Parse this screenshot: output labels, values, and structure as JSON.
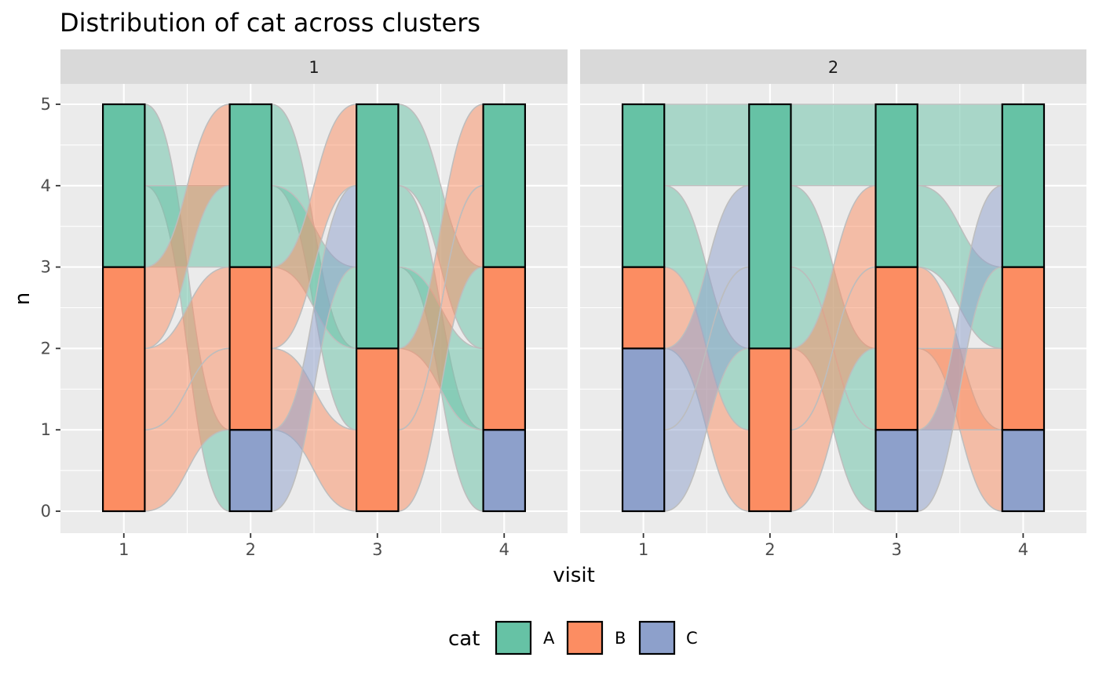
{
  "chart_data": {
    "type": "alluvial",
    "title": "Distribution of cat across clusters",
    "xlabel": "visit",
    "ylabel": "n",
    "ylim": [
      0,
      5
    ],
    "y_ticks": [
      0,
      1,
      2,
      3,
      4,
      5
    ],
    "x_ticks": [
      1,
      2,
      3,
      4
    ],
    "grid": true,
    "legend": {
      "title": "cat",
      "position": "bottom",
      "items": [
        {
          "name": "A",
          "color": "#66c2a5"
        },
        {
          "name": "B",
          "color": "#fc8d62"
        },
        {
          "name": "C",
          "color": "#8da0cb"
        }
      ]
    },
    "stack_order": [
      "C",
      "B",
      "A"
    ],
    "facets": [
      {
        "label": "1",
        "strata": [
          {
            "visit": 1,
            "counts": {
              "A": 2,
              "B": 3,
              "C": 0
            }
          },
          {
            "visit": 2,
            "counts": {
              "A": 2,
              "B": 2,
              "C": 1
            }
          },
          {
            "visit": 3,
            "counts": {
              "A": 3,
              "B": 2,
              "C": 0
            }
          },
          {
            "visit": 4,
            "counts": {
              "A": 2,
              "B": 2,
              "C": 1
            }
          }
        ],
        "flows": [
          {
            "from_visit": 1,
            "from": [
              4,
              5
            ],
            "to": [
              0,
              1
            ],
            "cat": "A"
          },
          {
            "from_visit": 1,
            "from": [
              3,
              4
            ],
            "to": [
              3,
              4
            ],
            "cat": "A"
          },
          {
            "from_visit": 1,
            "from": [
              2,
              3
            ],
            "to": [
              4,
              5
            ],
            "cat": "B"
          },
          {
            "from_visit": 1,
            "from": [
              1,
              2
            ],
            "to": [
              2,
              3
            ],
            "cat": "B"
          },
          {
            "from_visit": 1,
            "from": [
              0,
              1
            ],
            "to": [
              1,
              2
            ],
            "cat": "B"
          },
          {
            "from_visit": 2,
            "from": [
              4,
              5
            ],
            "to": [
              1,
              2
            ],
            "cat": "A"
          },
          {
            "from_visit": 2,
            "from": [
              3,
              4
            ],
            "to": [
              2,
              3
            ],
            "cat": "A"
          },
          {
            "from_visit": 2,
            "from": [
              2,
              3
            ],
            "to": [
              4,
              5
            ],
            "cat": "B"
          },
          {
            "from_visit": 2,
            "from": [
              1,
              2
            ],
            "to": [
              0,
              1
            ],
            "cat": "B"
          },
          {
            "from_visit": 2,
            "from": [
              0,
              1
            ],
            "to": [
              3,
              4
            ],
            "cat": "C"
          },
          {
            "from_visit": 3,
            "from": [
              4,
              5
            ],
            "to": [
              2,
              3
            ],
            "cat": "A"
          },
          {
            "from_visit": 3,
            "from": [
              3,
              4
            ],
            "to": [
              0,
              1
            ],
            "cat": "A"
          },
          {
            "from_visit": 3,
            "from": [
              2,
              3
            ],
            "to": [
              1,
              2
            ],
            "cat": "A"
          },
          {
            "from_visit": 3,
            "from": [
              1,
              2
            ],
            "to": [
              4,
              5
            ],
            "cat": "B"
          },
          {
            "from_visit": 3,
            "from": [
              0,
              1
            ],
            "to": [
              3,
              4
            ],
            "cat": "B"
          }
        ]
      },
      {
        "label": "2",
        "strata": [
          {
            "visit": 1,
            "counts": {
              "A": 2,
              "B": 1,
              "C": 2
            }
          },
          {
            "visit": 2,
            "counts": {
              "A": 3,
              "B": 2,
              "C": 0
            }
          },
          {
            "visit": 3,
            "counts": {
              "A": 2,
              "B": 2,
              "C": 1
            }
          },
          {
            "visit": 4,
            "counts": {
              "A": 2,
              "B": 2,
              "C": 1
            }
          }
        ],
        "flows": [
          {
            "from_visit": 1,
            "from": [
              4,
              5
            ],
            "to": [
              4,
              5
            ],
            "cat": "A"
          },
          {
            "from_visit": 1,
            "from": [
              3,
              4
            ],
            "to": [
              1,
              2
            ],
            "cat": "A"
          },
          {
            "from_visit": 1,
            "from": [
              2,
              3
            ],
            "to": [
              0,
              1
            ],
            "cat": "B"
          },
          {
            "from_visit": 1,
            "from": [
              1,
              2
            ],
            "to": [
              3,
              4
            ],
            "cat": "C"
          },
          {
            "from_visit": 1,
            "from": [
              0,
              1
            ],
            "to": [
              2,
              3
            ],
            "cat": "C"
          },
          {
            "from_visit": 2,
            "from": [
              4,
              5
            ],
            "to": [
              4,
              5
            ],
            "cat": "A"
          },
          {
            "from_visit": 2,
            "from": [
              3,
              4
            ],
            "to": [
              1,
              2
            ],
            "cat": "A"
          },
          {
            "from_visit": 2,
            "from": [
              2,
              3
            ],
            "to": [
              0,
              1
            ],
            "cat": "A"
          },
          {
            "from_visit": 2,
            "from": [
              1,
              2
            ],
            "to": [
              3,
              4
            ],
            "cat": "B"
          },
          {
            "from_visit": 2,
            "from": [
              0,
              1
            ],
            "to": [
              2,
              3
            ],
            "cat": "B"
          },
          {
            "from_visit": 3,
            "from": [
              4,
              5
            ],
            "to": [
              4,
              5
            ],
            "cat": "A"
          },
          {
            "from_visit": 3,
            "from": [
              3,
              4
            ],
            "to": [
              2,
              3
            ],
            "cat": "A"
          },
          {
            "from_visit": 3,
            "from": [
              2,
              3
            ],
            "to": [
              0,
              1
            ],
            "cat": "B"
          },
          {
            "from_visit": 3,
            "from": [
              1,
              2
            ],
            "to": [
              1,
              2
            ],
            "cat": "B"
          },
          {
            "from_visit": 3,
            "from": [
              0,
              1
            ],
            "to": [
              3,
              4
            ],
            "cat": "C"
          }
        ]
      }
    ]
  }
}
